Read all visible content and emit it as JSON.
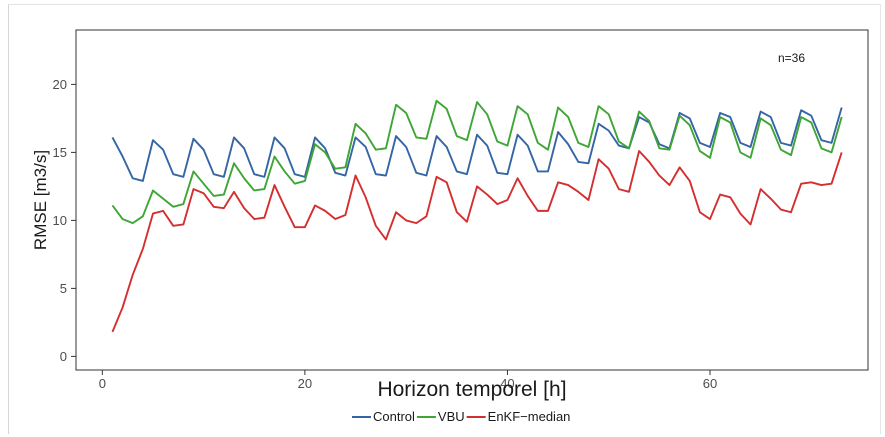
{
  "chart_data": {
    "type": "line",
    "xlabel": "Horizon temporel [h]",
    "ylabel": "RMSE [m3/s]",
    "annotation": "n=36",
    "xlim": [
      -2.6,
      75.6
    ],
    "ylim": [
      -1,
      24
    ],
    "xticks": [
      0,
      20,
      40,
      60
    ],
    "yticks": [
      0,
      5,
      10,
      15,
      20
    ],
    "x": [
      1,
      2,
      3,
      4,
      5,
      6,
      7,
      8,
      9,
      10,
      11,
      12,
      13,
      14,
      15,
      16,
      17,
      18,
      19,
      20,
      21,
      22,
      23,
      24,
      25,
      26,
      27,
      28,
      29,
      30,
      31,
      32,
      33,
      34,
      35,
      36,
      37,
      38,
      39,
      40,
      41,
      42,
      43,
      44,
      45,
      46,
      47,
      48,
      49,
      50,
      51,
      52,
      53,
      54,
      55,
      56,
      57,
      58,
      59,
      60,
      61,
      62,
      63,
      64,
      65,
      66,
      67,
      68,
      69,
      70,
      71,
      72,
      73
    ],
    "series": [
      {
        "name": "Control",
        "color": "#3465a4",
        "values": [
          16.1,
          14.7,
          13.1,
          12.9,
          15.9,
          15.2,
          13.4,
          13.2,
          16.0,
          15.2,
          13.4,
          13.2,
          16.1,
          15.3,
          13.4,
          13.2,
          16.1,
          15.3,
          13.4,
          13.2,
          16.1,
          15.3,
          13.5,
          13.3,
          16.1,
          15.4,
          13.4,
          13.3,
          16.2,
          15.4,
          13.5,
          13.3,
          16.2,
          15.4,
          13.6,
          13.4,
          16.3,
          15.5,
          13.5,
          13.4,
          16.3,
          15.5,
          13.6,
          13.6,
          16.5,
          15.6,
          14.3,
          14.2,
          17.1,
          16.6,
          15.5,
          15.3,
          17.6,
          17.2,
          15.6,
          15.3,
          17.9,
          17.5,
          15.7,
          15.4,
          17.9,
          17.6,
          15.7,
          15.4,
          18.0,
          17.6,
          15.7,
          15.5,
          18.1,
          17.7,
          15.9,
          15.7,
          18.3
        ]
      },
      {
        "name": "VBU",
        "color": "#3fa535",
        "values": [
          11.1,
          10.1,
          9.8,
          10.3,
          12.2,
          11.6,
          11.0,
          11.2,
          13.6,
          12.7,
          11.8,
          11.9,
          14.2,
          13.1,
          12.2,
          12.3,
          14.7,
          13.6,
          12.7,
          12.9,
          15.6,
          15.0,
          13.8,
          13.9,
          17.1,
          16.4,
          15.2,
          15.3,
          18.5,
          17.9,
          16.1,
          16.0,
          18.8,
          18.2,
          16.2,
          15.9,
          18.7,
          17.8,
          15.8,
          15.5,
          18.4,
          17.8,
          15.7,
          15.2,
          18.3,
          17.6,
          15.7,
          15.4,
          18.4,
          17.8,
          15.8,
          15.3,
          18.0,
          17.3,
          15.3,
          15.2,
          17.7,
          17.0,
          15.1,
          14.6,
          17.6,
          17.2,
          15.0,
          14.6,
          17.5,
          17.0,
          15.2,
          14.8,
          17.6,
          17.2,
          15.3,
          15.0,
          17.6
        ]
      },
      {
        "name": "EnKF−median",
        "color": "#d42f2f",
        "values": [
          1.8,
          3.6,
          6.0,
          7.9,
          10.5,
          10.7,
          9.6,
          9.7,
          12.3,
          12.0,
          11.0,
          10.9,
          12.1,
          10.9,
          10.1,
          10.2,
          12.6,
          11.0,
          9.5,
          9.5,
          11.1,
          10.7,
          10.1,
          10.4,
          13.3,
          11.7,
          9.6,
          8.6,
          10.6,
          10.0,
          9.8,
          10.3,
          13.2,
          12.8,
          10.6,
          9.9,
          12.5,
          11.9,
          11.2,
          11.5,
          13.1,
          11.8,
          10.7,
          10.7,
          12.8,
          12.6,
          12.1,
          11.5,
          14.5,
          13.8,
          12.3,
          12.1,
          15.1,
          14.3,
          13.3,
          12.6,
          13.9,
          12.9,
          10.6,
          10.1,
          11.9,
          11.7,
          10.5,
          9.7,
          12.3,
          11.6,
          10.8,
          10.6,
          12.7,
          12.8,
          12.6,
          12.7,
          15.0
        ]
      }
    ],
    "legend_position": "bottom",
    "grid": false
  }
}
